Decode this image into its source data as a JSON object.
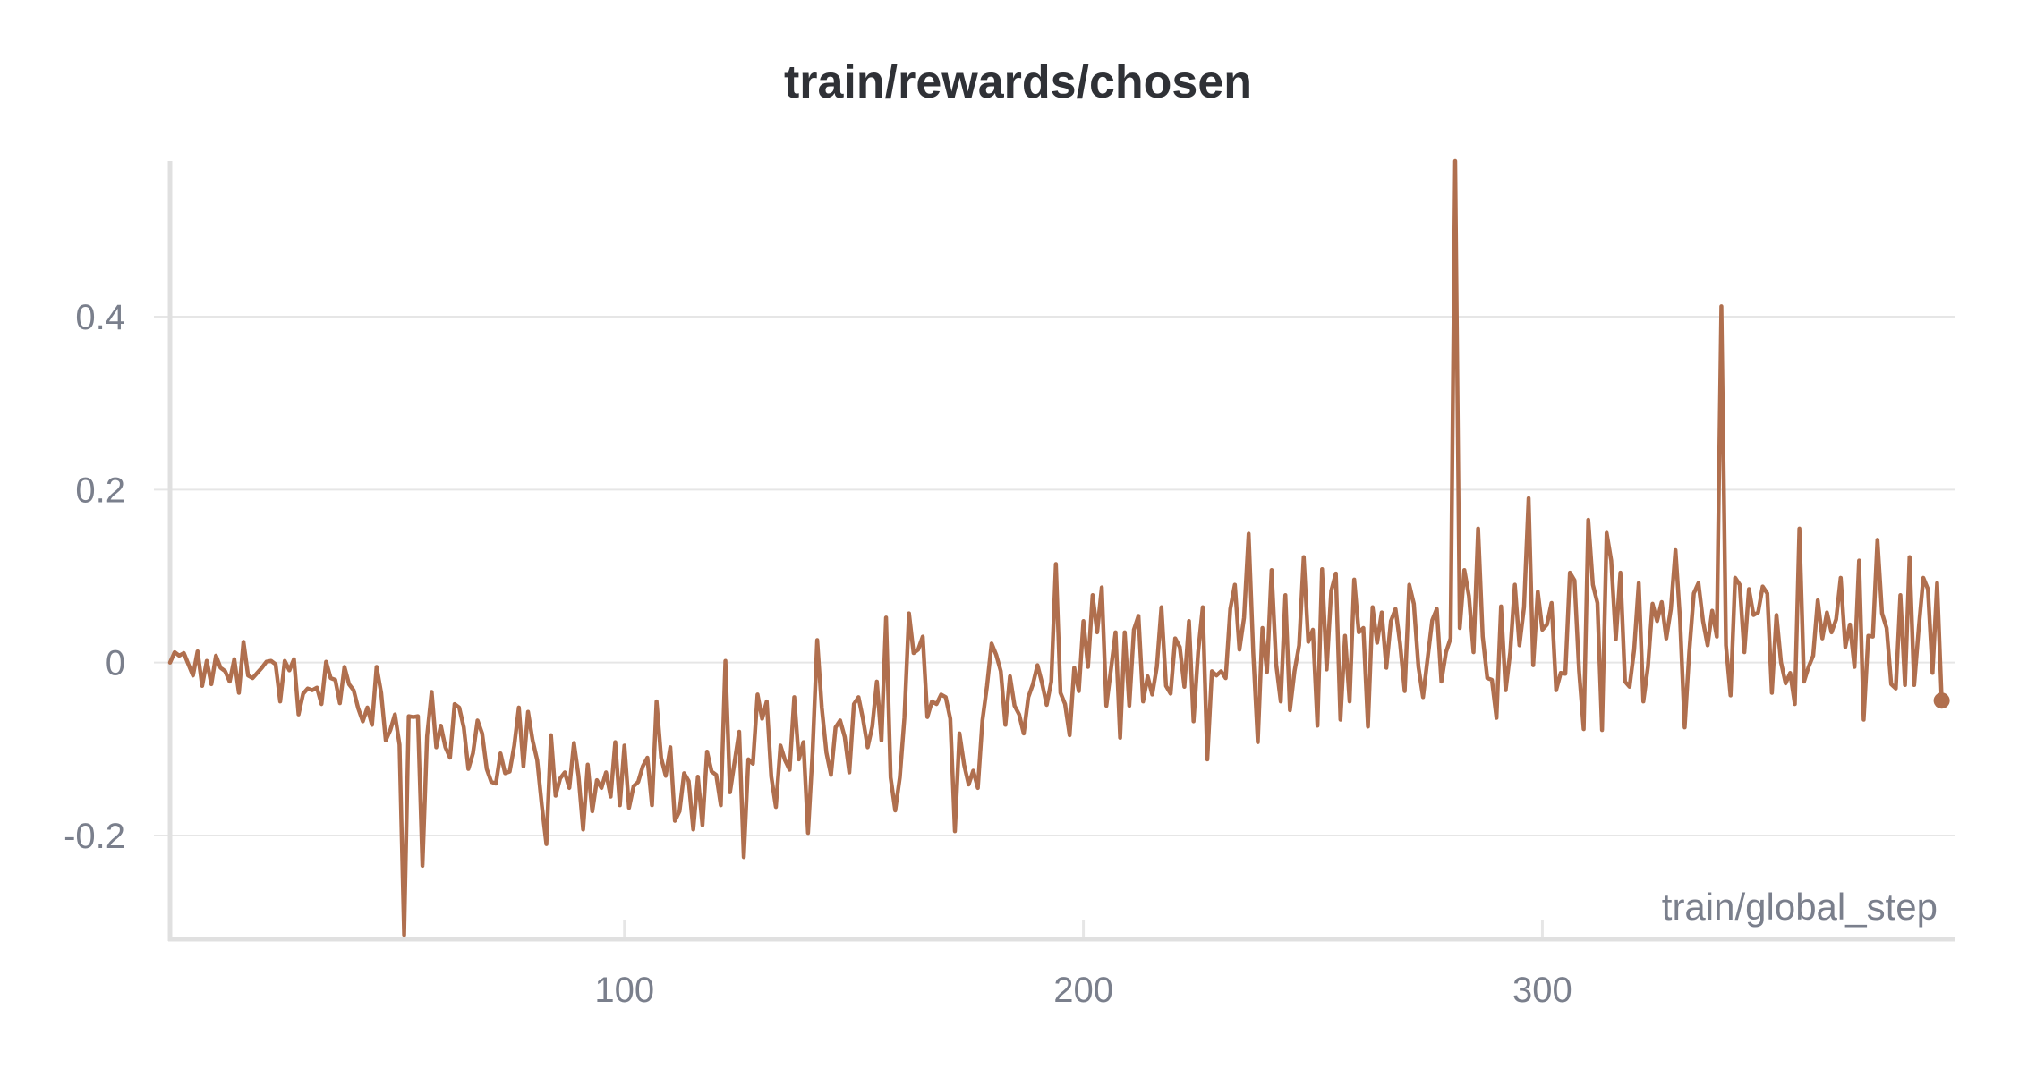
{
  "chart_data": {
    "type": "line",
    "title": "train/rewards/chosen",
    "xlabel": "train/global_step",
    "ylabel": "",
    "xlim": [
      1,
      390
    ],
    "ylim": [
      -0.32,
      0.58
    ],
    "x_ticks": [
      100,
      200,
      300
    ],
    "x_tick_labels": [
      "100",
      "200",
      "300"
    ],
    "y_ticks": [
      -0.2,
      0,
      0.2,
      0.4
    ],
    "y_tick_labels": [
      "-0.2",
      "0",
      "0.2",
      "0.4"
    ],
    "grid": true,
    "colors": {
      "line": "#b06f4e",
      "grid": "#e6e6e6",
      "axis": "#e0e0e0",
      "tick_text": "#7a7f8c",
      "title": "#2f3136"
    },
    "series": [
      {
        "name": "train/rewards/chosen",
        "x_start": 1,
        "x_step": 1,
        "end_marker": true,
        "values": [
          0.0,
          0.012,
          0.008,
          0.011,
          -0.002,
          -0.015,
          0.013,
          -0.027,
          0.002,
          -0.025,
          0.008,
          -0.006,
          -0.01,
          -0.022,
          0.004,
          -0.035,
          0.024,
          -0.015,
          -0.018,
          -0.012,
          -0.006,
          0.001,
          0.002,
          -0.002,
          -0.045,
          0.002,
          -0.009,
          0.004,
          -0.06,
          -0.036,
          -0.03,
          -0.032,
          -0.029,
          -0.048,
          0.001,
          -0.018,
          -0.02,
          -0.047,
          -0.005,
          -0.025,
          -0.032,
          -0.053,
          -0.068,
          -0.052,
          -0.072,
          -0.005,
          -0.035,
          -0.09,
          -0.078,
          -0.06,
          -0.095,
          -0.315,
          -0.062,
          -0.063,
          -0.062,
          -0.235,
          -0.085,
          -0.034,
          -0.098,
          -0.073,
          -0.098,
          -0.11,
          -0.048,
          -0.052,
          -0.075,
          -0.123,
          -0.105,
          -0.067,
          -0.082,
          -0.123,
          -0.138,
          -0.14,
          -0.105,
          -0.128,
          -0.126,
          -0.096,
          -0.052,
          -0.12,
          -0.057,
          -0.09,
          -0.113,
          -0.165,
          -0.21,
          -0.084,
          -0.154,
          -0.134,
          -0.127,
          -0.145,
          -0.093,
          -0.131,
          -0.193,
          -0.118,
          -0.172,
          -0.136,
          -0.145,
          -0.127,
          -0.155,
          -0.092,
          -0.165,
          -0.096,
          -0.168,
          -0.143,
          -0.138,
          -0.12,
          -0.11,
          -0.165,
          -0.045,
          -0.11,
          -0.131,
          -0.098,
          -0.183,
          -0.172,
          -0.128,
          -0.137,
          -0.193,
          -0.132,
          -0.188,
          -0.103,
          -0.126,
          -0.13,
          -0.165,
          0.002,
          -0.15,
          -0.115,
          -0.08,
          -0.225,
          -0.112,
          -0.117,
          -0.037,
          -0.065,
          -0.045,
          -0.132,
          -0.167,
          -0.096,
          -0.113,
          -0.124,
          -0.04,
          -0.112,
          -0.092,
          -0.197,
          -0.103,
          0.026,
          -0.052,
          -0.104,
          -0.13,
          -0.075,
          -0.067,
          -0.086,
          -0.127,
          -0.048,
          -0.04,
          -0.066,
          -0.098,
          -0.074,
          -0.022,
          -0.09,
          0.052,
          -0.133,
          -0.171,
          -0.133,
          -0.064,
          0.057,
          0.011,
          0.015,
          0.03,
          -0.063,
          -0.045,
          -0.048,
          -0.037,
          -0.04,
          -0.065,
          -0.195,
          -0.082,
          -0.118,
          -0.141,
          -0.125,
          -0.145,
          -0.067,
          -0.027,
          0.022,
          0.009,
          -0.01,
          -0.072,
          -0.016,
          -0.05,
          -0.06,
          -0.082,
          -0.04,
          -0.025,
          -0.003,
          -0.024,
          -0.049,
          -0.022,
          0.114,
          -0.035,
          -0.048,
          -0.084,
          -0.006,
          -0.033,
          0.048,
          -0.005,
          0.078,
          0.035,
          0.087,
          -0.05,
          -0.008,
          0.035,
          -0.087,
          0.035,
          -0.05,
          0.038,
          0.054,
          -0.045,
          -0.016,
          -0.037,
          -0.005,
          0.064,
          -0.027,
          -0.036,
          0.028,
          0.018,
          -0.028,
          0.048,
          -0.068,
          0.012,
          0.064,
          -0.112,
          -0.01,
          -0.015,
          -0.01,
          -0.018,
          0.062,
          0.09,
          0.015,
          0.052,
          0.149,
          0.012,
          -0.092,
          0.04,
          -0.011,
          0.107,
          -0.002,
          -0.045,
          0.078,
          -0.055,
          -0.01,
          0.02,
          0.122,
          0.024,
          0.038,
          -0.073,
          0.108,
          -0.008,
          0.083,
          0.103,
          -0.066,
          0.031,
          -0.045,
          0.096,
          0.035,
          0.04,
          -0.074,
          0.064,
          0.023,
          0.058,
          -0.006,
          0.048,
          0.062,
          0.022,
          -0.033,
          0.09,
          0.068,
          -0.005,
          -0.04,
          0.005,
          0.049,
          0.062,
          -0.022,
          0.012,
          0.028,
          0.58,
          0.04,
          0.107,
          0.077,
          0.012,
          0.155,
          0.03,
          -0.018,
          -0.02,
          -0.064,
          0.065,
          -0.032,
          0.012,
          0.09,
          0.02,
          0.064,
          0.19,
          -0.003,
          0.082,
          0.038,
          0.044,
          0.069,
          -0.032,
          -0.012,
          -0.013,
          0.104,
          0.095,
          -0.01,
          -0.077,
          0.165,
          0.09,
          0.069,
          -0.078,
          0.15,
          0.118,
          0.027,
          0.104,
          -0.022,
          -0.028,
          0.015,
          0.092,
          -0.045,
          -0.005,
          0.068,
          0.048,
          0.07,
          0.028,
          0.062,
          0.13,
          0.05,
          -0.075,
          0.012,
          0.08,
          0.092,
          0.048,
          0.02,
          0.06,
          0.03,
          0.412,
          0.02,
          -0.038,
          0.098,
          0.09,
          0.012,
          0.085,
          0.055,
          0.058,
          0.088,
          0.08,
          -0.035,
          0.055,
          0.0,
          -0.024,
          -0.012,
          -0.048,
          0.155,
          -0.022,
          -0.005,
          0.008,
          0.072,
          0.028,
          0.058,
          0.035,
          0.05,
          0.098,
          0.018,
          0.044,
          -0.005,
          0.118,
          -0.066,
          0.031,
          0.03,
          0.142,
          0.057,
          0.04,
          -0.025,
          -0.03,
          0.078,
          -0.026,
          0.122,
          -0.026,
          0.04,
          0.098,
          0.085,
          -0.012,
          0.092,
          -0.044
        ]
      }
    ]
  }
}
